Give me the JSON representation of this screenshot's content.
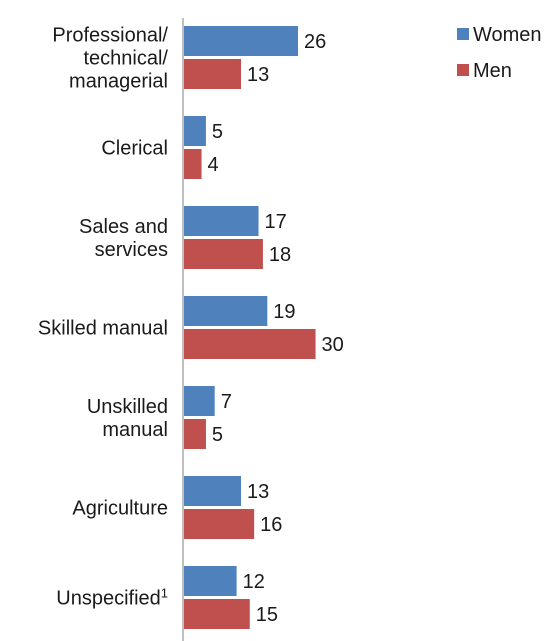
{
  "chart_data": {
    "type": "bar",
    "orientation": "horizontal",
    "categories": [
      "Professional/ technical/ managerial",
      "Clerical",
      "Sales and services",
      "Skilled manual",
      "Unskilled manual",
      "Agriculture",
      "Unspecified"
    ],
    "category_footnotes": [
      "",
      "",
      "",
      "",
      "",
      "",
      "1"
    ],
    "series": [
      {
        "name": "Women",
        "color": "#4f81bd",
        "values": [
          26,
          5,
          17,
          19,
          7,
          13,
          12
        ]
      },
      {
        "name": "Men",
        "color": "#c0504d",
        "values": [
          13,
          4,
          18,
          30,
          5,
          16,
          15
        ]
      }
    ],
    "title": "",
    "xlabel": "",
    "ylabel": "",
    "xlim": [
      0,
      30
    ],
    "grid": false,
    "legend": "top-right",
    "data_labels": true
  }
}
